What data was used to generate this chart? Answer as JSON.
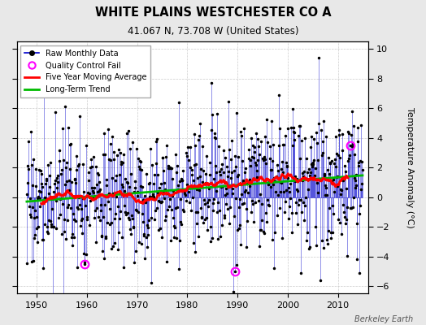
{
  "title": "WHITE PLAINS WESTCHESTER CO A",
  "subtitle": "41.067 N, 73.708 W (United States)",
  "ylabel": "Temperature Anomaly (°C)",
  "credit": "Berkeley Earth",
  "ylim": [
    -6.5,
    10.5
  ],
  "xlim": [
    1946,
    2016
  ],
  "yticks": [
    -6,
    -4,
    -2,
    0,
    2,
    4,
    6,
    8,
    10
  ],
  "xticks": [
    1950,
    1960,
    1970,
    1980,
    1990,
    2000,
    2010
  ],
  "raw_color": "#0000cc",
  "ma_color": "#ff0000",
  "trend_color": "#00bb00",
  "qc_color": "#ff00ff",
  "bg_color": "#e8e8e8",
  "plot_bg_color": "#ffffff",
  "seed": 17
}
